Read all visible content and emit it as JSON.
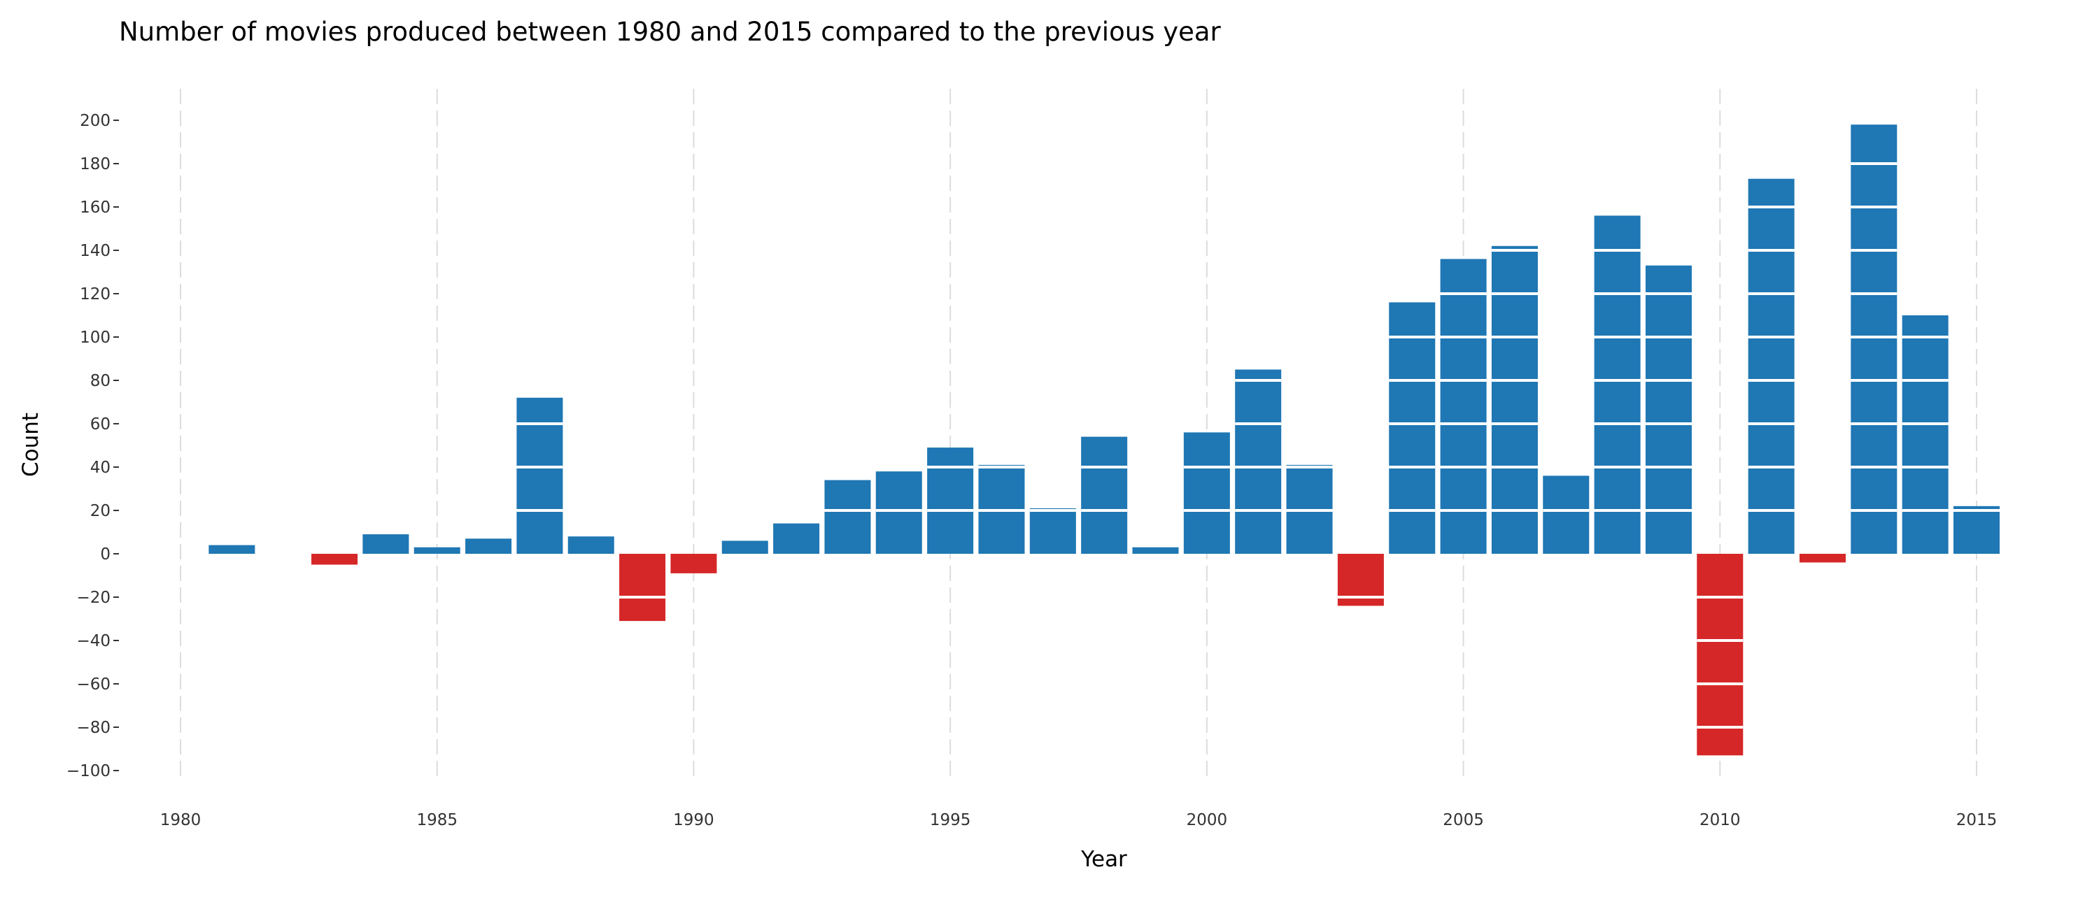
{
  "chart_data": {
    "type": "bar",
    "title": "Number of movies produced between 1980 and 2015 compared to the previous year",
    "xlabel": "Year",
    "ylabel": "Count",
    "x": [
      1981,
      1982,
      1983,
      1984,
      1985,
      1986,
      1987,
      1988,
      1989,
      1990,
      1991,
      1992,
      1993,
      1994,
      1995,
      1996,
      1997,
      1998,
      1999,
      2000,
      2001,
      2002,
      2003,
      2004,
      2005,
      2006,
      2007,
      2008,
      2009,
      2010,
      2011,
      2012,
      2013,
      2014,
      2015
    ],
    "values": [
      4,
      0,
      -5,
      9,
      3,
      7,
      72,
      8,
      -31,
      -9,
      6,
      14,
      34,
      38,
      49,
      41,
      21,
      54,
      3,
      56,
      85,
      41,
      -24,
      116,
      136,
      142,
      36,
      156,
      133,
      -93,
      173,
      -4,
      198,
      110,
      22
    ],
    "xlim": [
      1980,
      2015
    ],
    "ylim": [
      -100,
      200
    ],
    "x_ticks": [
      "1980",
      "1985",
      "1990",
      "1995",
      "2000",
      "2005",
      "2010",
      "2015"
    ],
    "y_ticks": [
      "−100",
      "−80",
      "−60",
      "−40",
      "−20",
      "0",
      "20",
      "40",
      "60",
      "80",
      "100",
      "120",
      "140",
      "160",
      "180",
      "200"
    ],
    "segment_step": 20,
    "grid": "vertical",
    "colors": {
      "positive": "#1f77b4",
      "negative": "#d62728",
      "grid": "#dcdcdc",
      "separator": "#ffffff"
    }
  }
}
